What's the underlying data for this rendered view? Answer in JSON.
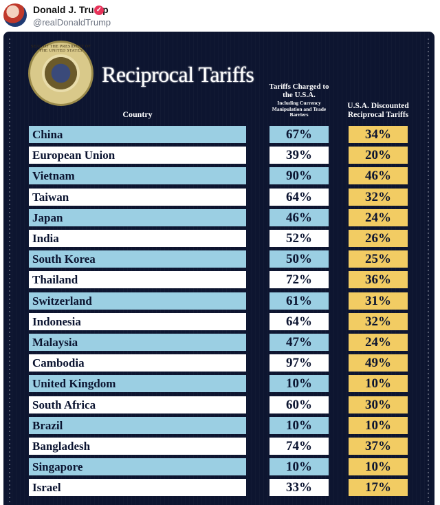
{
  "post": {
    "author_name": "Donald J. Trump",
    "handle": "@realDonaldTrump"
  },
  "poster": {
    "title": "Reciprocal Tariffs",
    "seal_text": "SEAL OF THE PRESIDENT OF THE UNITED STATES",
    "headers": {
      "country": "Country",
      "charged": "Tariffs Charged to the U.S.A.",
      "charged_sub": "Including Currency Manipulation and Trade Barriers",
      "discounted": "U.S.A. Discounted Reciprocal Tariffs"
    },
    "rows": [
      {
        "country": "China",
        "charged": "67%",
        "discounted": "34%"
      },
      {
        "country": "European Union",
        "charged": "39%",
        "discounted": "20%"
      },
      {
        "country": "Vietnam",
        "charged": "90%",
        "discounted": "46%"
      },
      {
        "country": "Taiwan",
        "charged": "64%",
        "discounted": "32%"
      },
      {
        "country": "Japan",
        "charged": "46%",
        "discounted": "24%"
      },
      {
        "country": "India",
        "charged": "52%",
        "discounted": "26%"
      },
      {
        "country": "South Korea",
        "charged": "50%",
        "discounted": "25%"
      },
      {
        "country": "Thailand",
        "charged": "72%",
        "discounted": "36%"
      },
      {
        "country": "Switzerland",
        "charged": "61%",
        "discounted": "31%"
      },
      {
        "country": "Indonesia",
        "charged": "64%",
        "discounted": "32%"
      },
      {
        "country": "Malaysia",
        "charged": "47%",
        "discounted": "24%"
      },
      {
        "country": "Cambodia",
        "charged": "97%",
        "discounted": "49%"
      },
      {
        "country": "United Kingdom",
        "charged": "10%",
        "discounted": "10%"
      },
      {
        "country": "South Africa",
        "charged": "60%",
        "discounted": "30%"
      },
      {
        "country": "Brazil",
        "charged": "10%",
        "discounted": "10%"
      },
      {
        "country": "Bangladesh",
        "charged": "74%",
        "discounted": "37%"
      },
      {
        "country": "Singapore",
        "charged": "10%",
        "discounted": "10%"
      },
      {
        "country": "Israel",
        "charged": "33%",
        "discounted": "17%"
      }
    ]
  },
  "colors": {
    "background": "#0d1530",
    "row_blue": "#9bcfe3",
    "row_white": "#ffffff",
    "discount_gold": "#f2cc63",
    "verified": "#e8335a"
  }
}
